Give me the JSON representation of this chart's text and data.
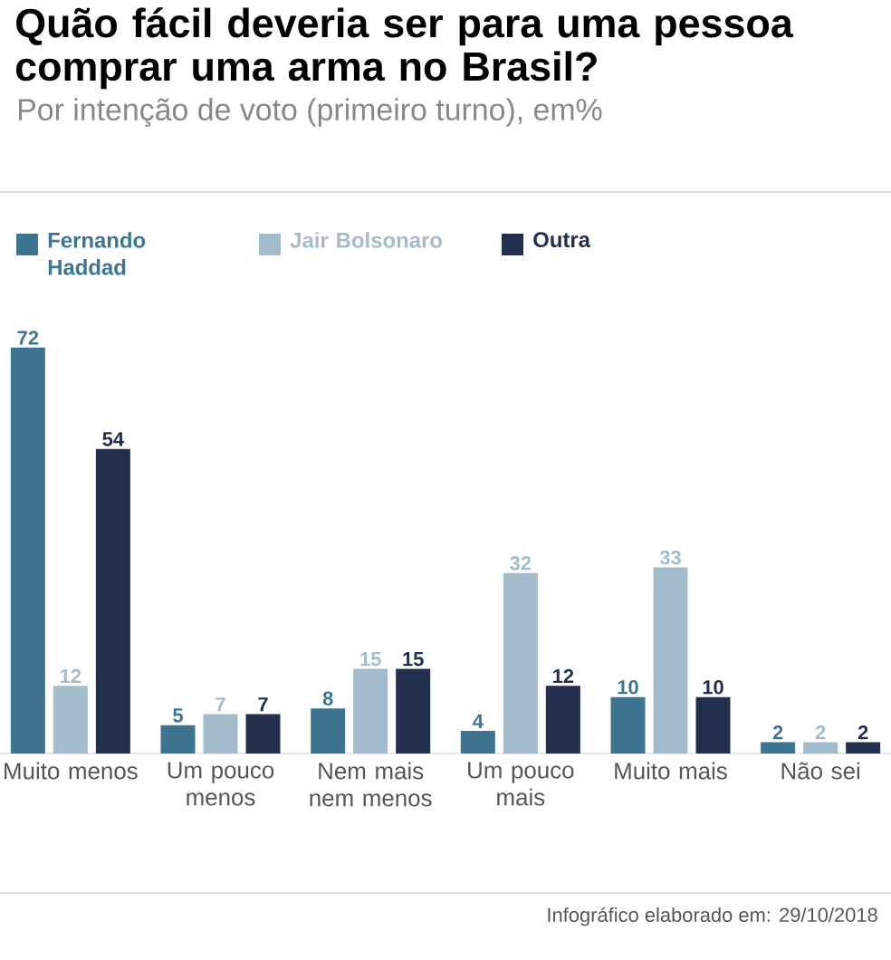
{
  "chart_data": {
    "type": "bar",
    "title": "Quão fácil deveria ser para uma pessoa comprar uma arma no Brasil?",
    "subtitle": "Por intenção de voto (primeiro turno), em%",
    "categories": [
      "Muito menos",
      "Um pouco menos",
      "Nem mais nem menos",
      "Um pouco mais",
      "Muito mais",
      "Não sei"
    ],
    "series": [
      {
        "name": "Fernando Haddad",
        "color": "#3d7590",
        "values": [
          72,
          5,
          8,
          4,
          10,
          2
        ]
      },
      {
        "name": "Jair Bolsonaro",
        "color": "#a3bccb",
        "values": [
          12,
          7,
          15,
          32,
          33,
          2
        ]
      },
      {
        "name": "Outra",
        "color": "#22304d",
        "values": [
          54,
          7,
          15,
          12,
          10,
          2
        ]
      }
    ],
    "data_labels": true,
    "legend": "top left",
    "annotations": [
      "Infográfico elaborado em: 29/10/2018"
    ]
  }
}
